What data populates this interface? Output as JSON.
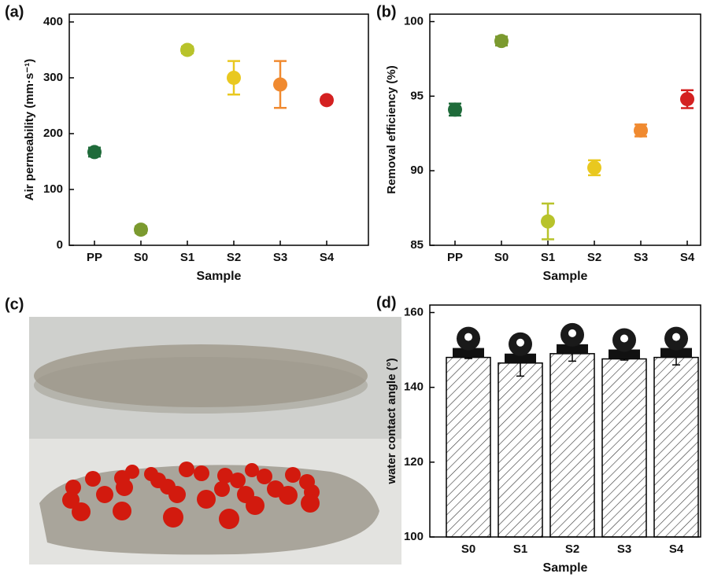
{
  "chart_data": [
    {
      "type": "scatter",
      "panel_label": "(a)",
      "x_label": "Sample",
      "y_label": "Air permeability (mm·s⁻¹)",
      "categories": [
        "PP",
        "S0",
        "S1",
        "S2",
        "S3",
        "S4"
      ],
      "values": [
        167,
        28,
        350,
        300,
        288,
        260
      ],
      "errors": [
        8,
        6,
        6,
        30,
        42,
        5
      ],
      "colors": [
        "#1f6b3a",
        "#7b9a2f",
        "#b8c32b",
        "#e9c81f",
        "#f08a30",
        "#d42121"
      ],
      "ylim": [
        0,
        414
      ],
      "yticks": [
        0,
        100,
        200,
        300,
        400
      ]
    },
    {
      "type": "scatter",
      "panel_label": "(b)",
      "x_label": "Sample",
      "y_label": "Removal efficiency (%)",
      "categories": [
        "PP",
        "S0",
        "S1",
        "S2",
        "S3",
        "S4"
      ],
      "values": [
        94.1,
        98.7,
        86.6,
        90.2,
        92.7,
        94.8
      ],
      "errors": [
        0.4,
        0.3,
        1.2,
        0.5,
        0.4,
        0.6
      ],
      "colors": [
        "#1f6b3a",
        "#7b9a2f",
        "#b8c32b",
        "#e9c81f",
        "#f08a30",
        "#d42121"
      ],
      "ylim": [
        85,
        100.5
      ],
      "yticks": [
        85,
        90,
        95,
        100
      ]
    },
    {
      "type": "bar",
      "panel_label": "(d)",
      "x_label": "Sample",
      "y_label": "water contact angle (°)",
      "categories": [
        "S0",
        "S1",
        "S2",
        "S3",
        "S4"
      ],
      "values": [
        148,
        146.5,
        149,
        147.6,
        148
      ],
      "errors": [
        0.3,
        3.5,
        2,
        0.3,
        2
      ],
      "ylim": [
        100,
        162
      ],
      "yticks": [
        100,
        120,
        140,
        160
      ]
    }
  ],
  "photo": {
    "panel_label": "(c)"
  }
}
